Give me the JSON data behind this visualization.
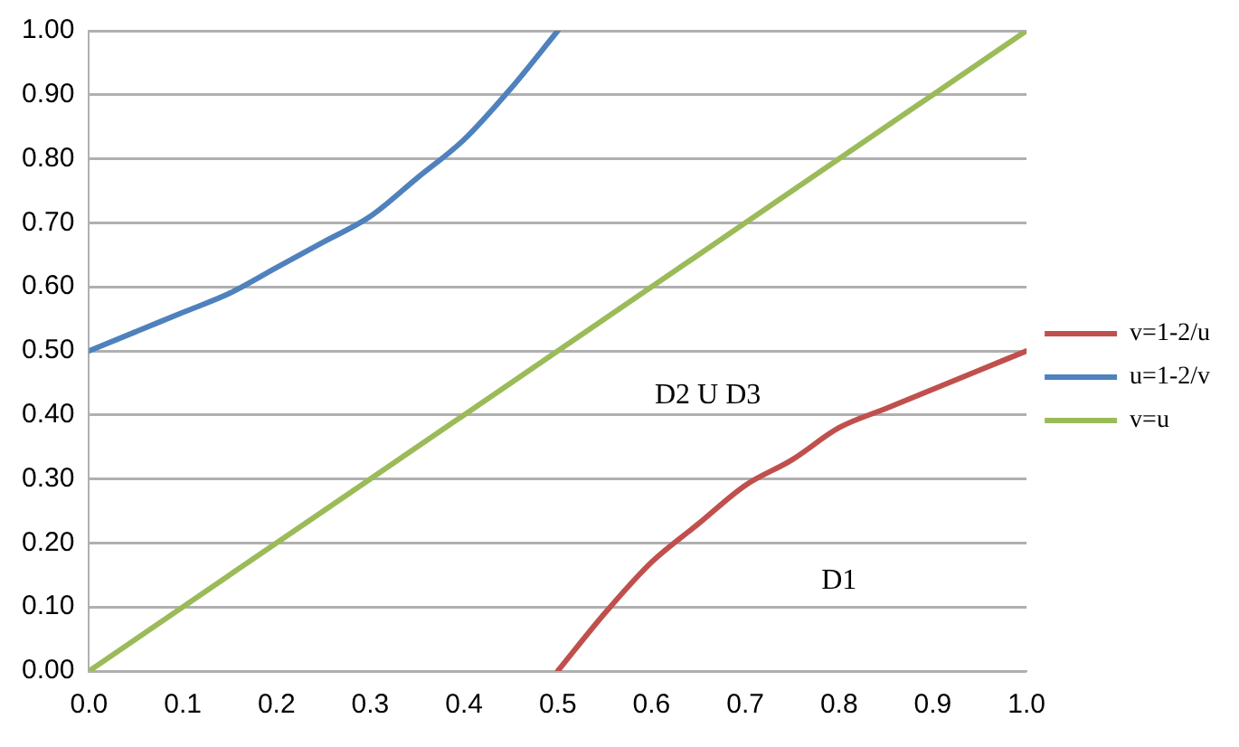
{
  "chart_data": {
    "type": "line",
    "series": [
      {
        "name": "v=1-2/u",
        "color": "#c0504d",
        "x": [
          0.5,
          0.55,
          0.6,
          0.65,
          0.7,
          0.75,
          0.8,
          0.85,
          0.9,
          0.95,
          1.0
        ],
        "values": [
          0,
          0.09,
          0.17,
          0.23,
          0.29,
          0.33,
          0.38,
          0.41,
          0.44,
          0.47,
          0.5
        ]
      },
      {
        "name": "u=1-2/v",
        "color": "#4f81bd",
        "x": [
          0,
          0.05,
          0.1,
          0.15,
          0.2,
          0.25,
          0.3,
          0.35,
          0.4,
          0.45,
          0.5
        ],
        "values": [
          0.5,
          0.53,
          0.56,
          0.59,
          0.63,
          0.67,
          0.71,
          0.77,
          0.83,
          0.91,
          1.0
        ]
      },
      {
        "name": "v=u",
        "color": "#9bbb59",
        "x": [
          0,
          1
        ],
        "values": [
          0,
          1
        ]
      }
    ],
    "annotations": [
      "D2 U D3",
      "D1"
    ],
    "xlim": [
      0,
      1
    ],
    "xticks": [
      {
        "value": 0,
        "label": "0.0"
      },
      {
        "value": 0.1,
        "label": "0.1"
      },
      {
        "value": 0.2,
        "label": "0.2"
      },
      {
        "value": 0.3,
        "label": "0.3"
      },
      {
        "value": 0.4,
        "label": "0.4"
      },
      {
        "value": 0.5,
        "label": "0.5"
      },
      {
        "value": 0.6,
        "label": "0.6"
      },
      {
        "value": 0.7,
        "label": "0.7"
      },
      {
        "value": 0.8,
        "label": "0.8"
      },
      {
        "value": 0.9,
        "label": "0.9"
      },
      {
        "value": 1,
        "label": "1.0"
      }
    ],
    "ylim": [
      0,
      1
    ],
    "yticks": [
      {
        "value": 0,
        "label": "0.00"
      },
      {
        "value": 0.1,
        "label": "0.10"
      },
      {
        "value": 0.2,
        "label": "0.20"
      },
      {
        "value": 0.3,
        "label": "0.30"
      },
      {
        "value": 0.4,
        "label": "0.40"
      },
      {
        "value": 0.5,
        "label": "0.50"
      },
      {
        "value": 0.6,
        "label": "0.60"
      },
      {
        "value": 0.7,
        "label": "0.70"
      },
      {
        "value": 0.8,
        "label": "0.80"
      },
      {
        "value": 0.9,
        "label": "0.90"
      },
      {
        "value": 1,
        "label": "1.00"
      }
    ],
    "grid": "y",
    "legend": "right",
    "marker": "none",
    "line_style": "solid"
  }
}
